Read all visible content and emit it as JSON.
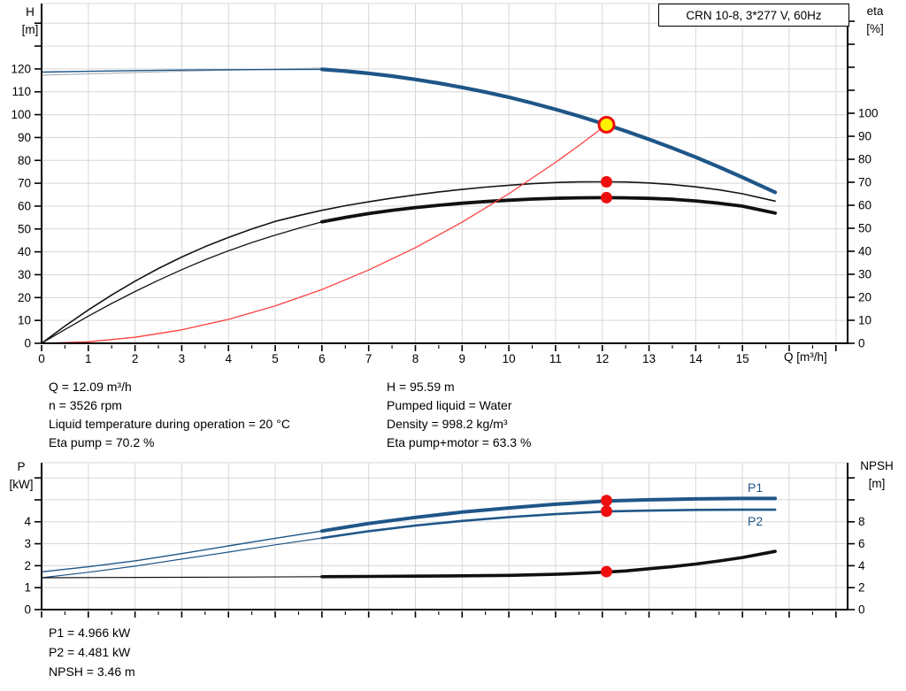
{
  "title_box": "CRN 10-8, 3*277 V, 60Hz",
  "colors": {
    "accent_blue": "#1f5688",
    "curve_black": "#101010",
    "system_red": "#ff4040",
    "marker_red": "#ee0e0e",
    "marker_yellow": "#ffef00",
    "grid": "#d7d7d7",
    "ref_gray": "#a8adb5",
    "axis": "#000000"
  },
  "info": {
    "top_left": [
      "Q = 12.09 m³/h",
      "n = 3526 rpm",
      "Liquid temperature during operation = 20 °C",
      "Eta pump = 70.2 %"
    ],
    "top_right": [
      "H = 95.59 m",
      "Pumped liquid = Water",
      "Density = 998.2 kg/m³",
      "Eta pump+motor = 63.3 %"
    ],
    "bottom": [
      "P1 = 4.966 kW",
      "P2 = 4.481 kW",
      "NPSH = 3.46 m"
    ]
  },
  "labels": {
    "p1": "P1",
    "p2": "P2"
  },
  "chart_data": [
    {
      "name": "qh",
      "type": "line",
      "title": "CRN 10-8, 3*277 V, 60Hz",
      "duty_point": {
        "Q": 12.09,
        "H": 95.59,
        "eta_pump": 70.2,
        "eta_pump_motor": 63.3
      },
      "x_axis": {
        "label": "Q [m³/h]",
        "min": 0,
        "max": 17.25,
        "minor_step": 0.5,
        "labeled_ticks": [
          0,
          1,
          2,
          3,
          4,
          5,
          6,
          7,
          8,
          9,
          10,
          11,
          12,
          13,
          14,
          15
        ]
      },
      "y_left": {
        "label": "H\n[m]",
        "min": 0,
        "max": 148.6,
        "ticks": [
          0,
          10,
          20,
          30,
          40,
          50,
          60,
          70,
          80,
          90,
          100,
          110,
          120,
          130,
          140
        ],
        "labeled": [
          0,
          10,
          20,
          30,
          40,
          50,
          60,
          70,
          80,
          90,
          100,
          110,
          120
        ]
      },
      "y_right": {
        "label": "eta\n[%]",
        "min": 0,
        "max": 147.7,
        "ticks": [
          0,
          10,
          20,
          30,
          40,
          50,
          60,
          70,
          80,
          90,
          100,
          110,
          120,
          130,
          140
        ],
        "labeled": [
          0,
          10,
          20,
          30,
          40,
          50,
          60,
          70,
          80,
          90,
          100
        ]
      },
      "series": [
        {
          "name": "speed-ref-line",
          "axis": "left",
          "color": "#a8adb5",
          "width": 1.1,
          "points": [
            [
              0,
              117.3
            ],
            [
              3,
              119.0
            ],
            [
              6,
              120.4
            ]
          ]
        },
        {
          "name": "pump-curve-thin",
          "axis": "left",
          "color": "#1f5688",
          "width": 1.4,
          "points": [
            [
              0,
              118.6
            ],
            [
              1,
              118.95
            ],
            [
              2,
              119.25
            ],
            [
              3,
              119.5
            ],
            [
              4,
              119.65
            ],
            [
              5,
              119.75
            ],
            [
              6,
              119.8
            ]
          ]
        },
        {
          "name": "pump-curve",
          "axis": "left",
          "color": "#1f5688",
          "width": 4.2,
          "points": [
            [
              6,
              119.8
            ],
            [
              6.5,
              119.05
            ],
            [
              7,
              118.05
            ],
            [
              7.5,
              116.85
            ],
            [
              8,
              115.4
            ],
            [
              8.5,
              113.79
            ],
            [
              9,
              111.9
            ],
            [
              9.5,
              109.86
            ],
            [
              10,
              107.6
            ],
            [
              10.5,
              105.05
            ],
            [
              11,
              102.3
            ],
            [
              11.5,
              99.37
            ],
            [
              12.09,
              95.59
            ],
            [
              12.5,
              92.82
            ],
            [
              13,
              89.2
            ],
            [
              13.5,
              85.4
            ],
            [
              14,
              81.4
            ],
            [
              14.5,
              77.1
            ],
            [
              15,
              72.6
            ],
            [
              15.7,
              66
            ]
          ]
        },
        {
          "name": "eta-pump-curve",
          "axis": "right",
          "color": "#141414",
          "width": 1.6,
          "points": [
            [
              0,
              0
            ],
            [
              0.5,
              7.5
            ],
            [
              1,
              14.5
            ],
            [
              1.5,
              21
            ],
            [
              2,
              27
            ],
            [
              2.5,
              32.5
            ],
            [
              3,
              37.5
            ],
            [
              3.5,
              42
            ],
            [
              4,
              46
            ],
            [
              4.5,
              49.7
            ],
            [
              5,
              53
            ],
            [
              5.5,
              55.5
            ],
            [
              6,
              57.8
            ],
            [
              6.5,
              59.8
            ],
            [
              7,
              61.5
            ],
            [
              7.5,
              63.1
            ],
            [
              8,
              64.5
            ],
            [
              8.5,
              65.8
            ],
            [
              9,
              66.9
            ],
            [
              9.5,
              67.9
            ],
            [
              10,
              68.7
            ],
            [
              10.5,
              69.4
            ],
            [
              11,
              69.9
            ],
            [
              11.5,
              70.15
            ],
            [
              12.09,
              70.2
            ],
            [
              12.5,
              70.1
            ],
            [
              13,
              69.7
            ],
            [
              13.5,
              69
            ],
            [
              14,
              68
            ],
            [
              14.5,
              66.7
            ],
            [
              15,
              65
            ],
            [
              15.7,
              61.8
            ]
          ]
        },
        {
          "name": "eta-pump-motor-thin",
          "axis": "right",
          "color": "#141414",
          "width": 1.3,
          "points": [
            [
              0,
              0
            ],
            [
              0.5,
              6
            ],
            [
              1,
              11.8
            ],
            [
              1.5,
              17.3
            ],
            [
              2,
              22.5
            ],
            [
              2.5,
              27.4
            ],
            [
              3,
              32
            ],
            [
              3.5,
              36.3
            ],
            [
              4,
              40.2
            ],
            [
              4.5,
              43.8
            ],
            [
              5,
              47
            ],
            [
              5.5,
              50
            ],
            [
              6,
              52.8
            ]
          ]
        },
        {
          "name": "eta-pump-motor-curve",
          "axis": "right",
          "color": "#101010",
          "width": 3.8,
          "points": [
            [
              6,
              52.8
            ],
            [
              6.5,
              54.7
            ],
            [
              7,
              56.4
            ],
            [
              7.5,
              57.8
            ],
            [
              8,
              59
            ],
            [
              8.5,
              60
            ],
            [
              9,
              60.9
            ],
            [
              9.5,
              61.6
            ],
            [
              10,
              62.2
            ],
            [
              10.5,
              62.7
            ],
            [
              11,
              63.05
            ],
            [
              11.5,
              63.25
            ],
            [
              12.09,
              63.3
            ],
            [
              12.5,
              63.25
            ],
            [
              13,
              63
            ],
            [
              13.5,
              62.6
            ],
            [
              14,
              61.9
            ],
            [
              14.5,
              60.9
            ],
            [
              15,
              59.6
            ],
            [
              15.7,
              56.6
            ]
          ]
        },
        {
          "name": "system-curve",
          "axis": "left",
          "color": "#ff4040",
          "width": 1.3,
          "points": [
            [
              0,
              0
            ],
            [
              1,
              0.65
            ],
            [
              2,
              2.62
            ],
            [
              3,
              5.89
            ],
            [
              4,
              10.46
            ],
            [
              5,
              16.35
            ],
            [
              6,
              23.54
            ],
            [
              7,
              32.04
            ],
            [
              8,
              41.85
            ],
            [
              9,
              52.97
            ],
            [
              10,
              65.39
            ],
            [
              11,
              79.12
            ],
            [
              11.5,
              86.5
            ],
            [
              12.09,
              95.59
            ]
          ]
        }
      ],
      "markers": [
        {
          "name": "duty-point",
          "axis": "left",
          "x": 12.09,
          "y": 95.59,
          "r": 8.5,
          "fill": "#ffef00",
          "stroke": "#ee0e0e",
          "stroke_width": 3
        },
        {
          "name": "eta-pump-point",
          "axis": "right",
          "x": 12.09,
          "y": 70.2,
          "r": 6.5,
          "fill": "#ee0e0e"
        },
        {
          "name": "eta-pump-motor-point",
          "axis": "right",
          "x": 12.09,
          "y": 63.3,
          "r": 6.5,
          "fill": "#ee0e0e"
        }
      ]
    },
    {
      "name": "power",
      "type": "line",
      "duty_point": {
        "Q": 12.09,
        "P1": 4.966,
        "P2": 4.481,
        "NPSH": 3.46
      },
      "x_axis": {
        "label": "",
        "min": 0,
        "max": 17.25,
        "minor_step": 0.5,
        "labeled_ticks": []
      },
      "y_left": {
        "label": "P\n[kW]",
        "min": 0,
        "max": 6.69,
        "ticks": [
          0,
          1,
          2,
          3,
          4,
          5,
          6
        ],
        "labeled": [
          0,
          1,
          2,
          3,
          4
        ]
      },
      "y_right": {
        "label": "NPSH\n[m]",
        "min": 0,
        "max": 13.38,
        "ticks": [
          0,
          2,
          4,
          6,
          8,
          10,
          12
        ],
        "labeled": [
          0,
          2,
          4,
          6,
          8
        ]
      },
      "series": [
        {
          "name": "p1-curve-thin",
          "axis": "left",
          "color": "#1f5688",
          "width": 1.4,
          "points": [
            [
              0,
              1.72
            ],
            [
              1,
              1.95
            ],
            [
              2,
              2.22
            ],
            [
              3,
              2.55
            ],
            [
              4,
              2.9
            ],
            [
              5,
              3.25
            ],
            [
              6,
              3.58
            ]
          ]
        },
        {
          "name": "p1-curve",
          "axis": "left",
          "color": "#1f5688",
          "width": 4,
          "points": [
            [
              6,
              3.58
            ],
            [
              7,
              3.92
            ],
            [
              8,
              4.2
            ],
            [
              9,
              4.44
            ],
            [
              10,
              4.63
            ],
            [
              11,
              4.8
            ],
            [
              12.09,
              4.95
            ],
            [
              13,
              5.0
            ],
            [
              14,
              5.04
            ],
            [
              15,
              5.06
            ],
            [
              15.7,
              5.06
            ]
          ]
        },
        {
          "name": "p2-curve-thin",
          "axis": "left",
          "color": "#1f5688",
          "width": 1.2,
          "points": [
            [
              0,
              1.45
            ],
            [
              1,
              1.7
            ],
            [
              2,
              1.98
            ],
            [
              3,
              2.3
            ],
            [
              4,
              2.62
            ],
            [
              5,
              2.95
            ],
            [
              6,
              3.26
            ]
          ]
        },
        {
          "name": "p2-curve",
          "axis": "left",
          "color": "#1f5688",
          "width": 2.6,
          "points": [
            [
              6,
              3.26
            ],
            [
              7,
              3.57
            ],
            [
              8,
              3.83
            ],
            [
              9,
              4.04
            ],
            [
              10,
              4.21
            ],
            [
              11,
              4.35
            ],
            [
              12.09,
              4.47
            ],
            [
              13,
              4.51
            ],
            [
              14,
              4.54
            ],
            [
              15,
              4.55
            ],
            [
              15.7,
              4.55
            ]
          ]
        },
        {
          "name": "npsh-curve-thin",
          "axis": "right",
          "color": "#101010",
          "width": 1.2,
          "points": [
            [
              0,
              2.9
            ],
            [
              2,
              2.93
            ],
            [
              4,
              2.96
            ],
            [
              6,
              3.0
            ]
          ]
        },
        {
          "name": "npsh-curve",
          "axis": "right",
          "color": "#101010",
          "width": 3.6,
          "points": [
            [
              6,
              3.0
            ],
            [
              7,
              3.02
            ],
            [
              8,
              3.05
            ],
            [
              9,
              3.08
            ],
            [
              10,
              3.12
            ],
            [
              11,
              3.22
            ],
            [
              11.5,
              3.3
            ],
            [
              12.09,
              3.42
            ],
            [
              12.5,
              3.52
            ],
            [
              13,
              3.72
            ],
            [
              13.5,
              3.92
            ],
            [
              14,
              4.15
            ],
            [
              14.5,
              4.43
            ],
            [
              15,
              4.75
            ],
            [
              15.7,
              5.3
            ]
          ]
        }
      ],
      "markers": [
        {
          "name": "p1-point",
          "axis": "left",
          "x": 12.09,
          "y": 4.966,
          "r": 6.5,
          "fill": "#ee0e0e"
        },
        {
          "name": "p2-point",
          "axis": "left",
          "x": 12.09,
          "y": 4.481,
          "r": 6.5,
          "fill": "#ee0e0e"
        },
        {
          "name": "npsh-point",
          "axis": "right",
          "x": 12.09,
          "y": 3.46,
          "r": 6.5,
          "fill": "#ee0e0e"
        }
      ]
    }
  ]
}
